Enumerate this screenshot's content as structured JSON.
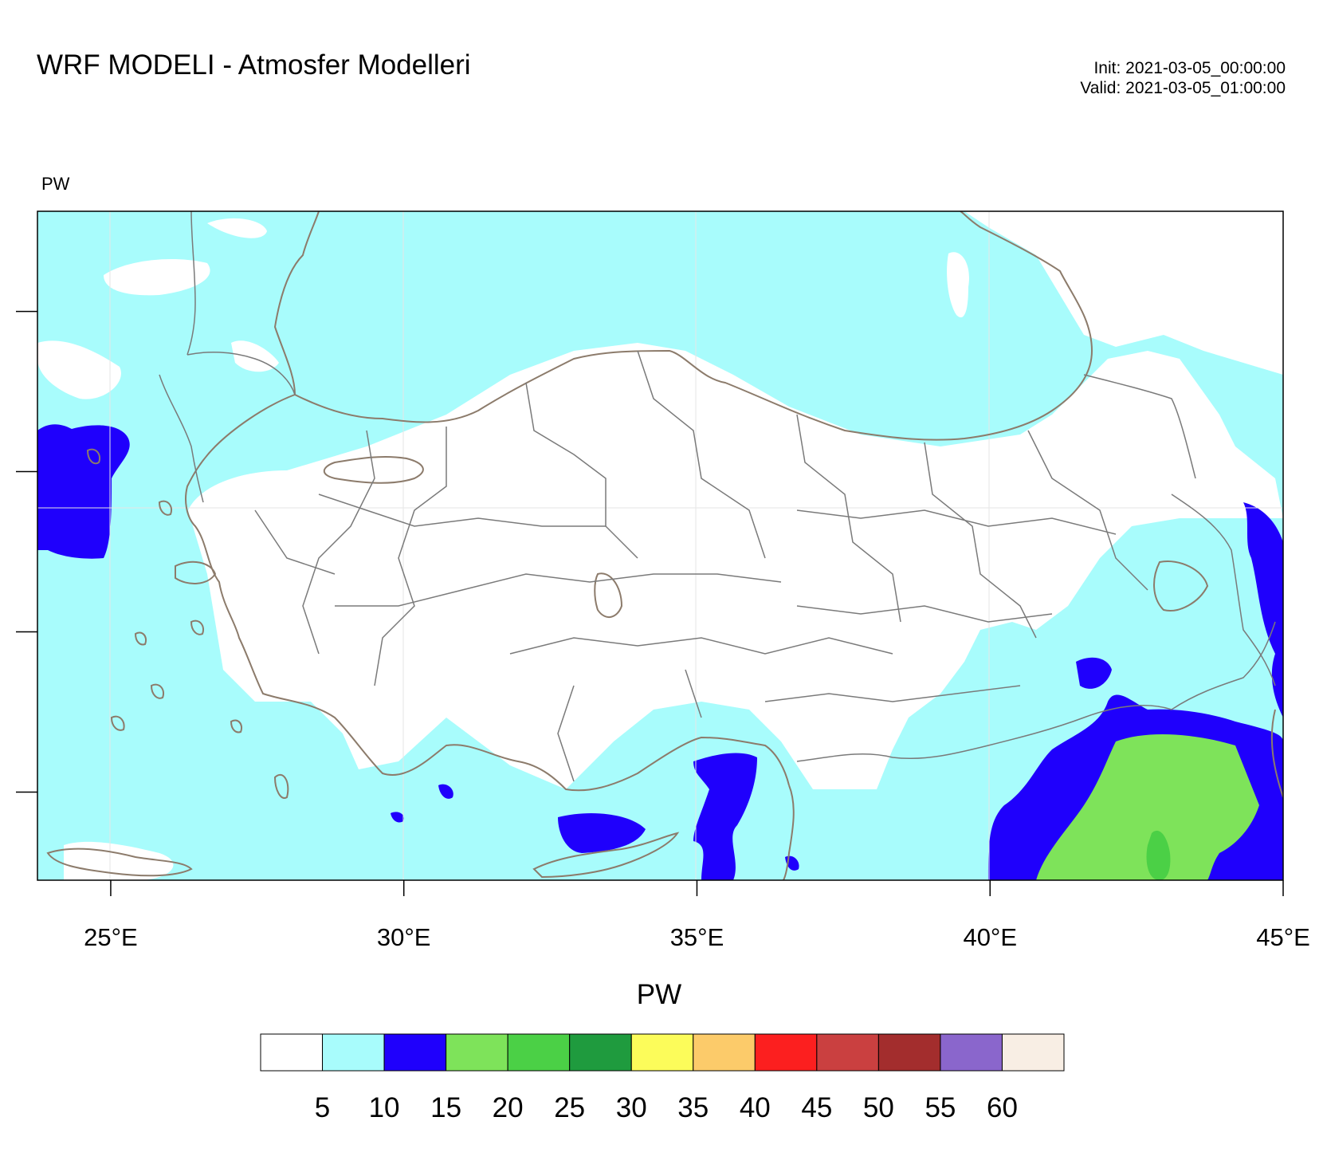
{
  "title": "WRF MODELI - Atmosfer Modelleri",
  "init_time": "Init: 2021-03-05_00:00:00",
  "valid_time": "Valid: 2021-03-05_01:00:00",
  "field_label": "PW",
  "map": {
    "lon_range": [
      23.75,
      45.0
    ],
    "lat_range": [
      34.9,
      43.25
    ],
    "lon_ticks": [
      {
        "value": 25,
        "label": "25°E"
      },
      {
        "value": 30,
        "label": "30°E"
      },
      {
        "value": 35,
        "label": "35°E"
      },
      {
        "value": 40,
        "label": "40°E"
      },
      {
        "value": 45,
        "label": "45°E"
      }
    ],
    "lat_ticks": [
      36,
      38,
      40,
      42
    ],
    "coastline_color": "#8c7b6b",
    "border_color": "#7a7a7a"
  },
  "colorbar": {
    "title": "PW",
    "colors": [
      "#ffffff",
      "#a8fcfc",
      "#1f00fc",
      "#7ee35a",
      "#4bd046",
      "#1f9b3e",
      "#fcfc5a",
      "#fccb6a",
      "#fc1f1f",
      "#ca4040",
      "#a32d2d",
      "#8a66cc",
      "#f8eee4"
    ],
    "labels": [
      "5",
      "10",
      "15",
      "20",
      "25",
      "30",
      "35",
      "40",
      "45",
      "50",
      "55",
      "60"
    ]
  }
}
